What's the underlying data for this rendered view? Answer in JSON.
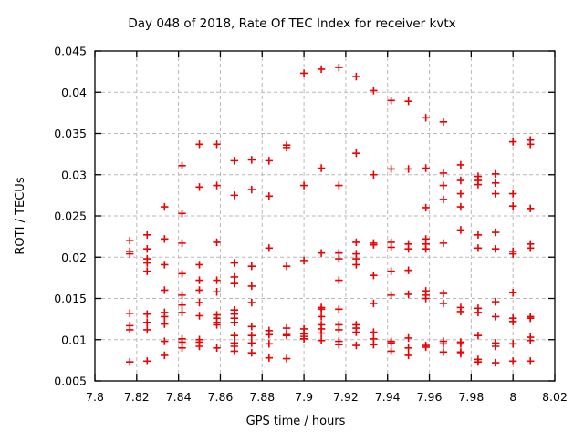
{
  "chart": {
    "title": "Day 048 of 2018, Rate Of TEC Index for receiver kvtx",
    "xlabel": "GPS time / hours",
    "ylabel": "ROTI / TECUs"
  },
  "chart_data": {
    "type": "scatter",
    "title": "Day 048 of 2018, Rate Of TEC Index for receiver kvtx",
    "xlabel": "GPS time / hours",
    "ylabel": "ROTI / TECUs",
    "xlim": [
      7.8,
      8.02
    ],
    "ylim": [
      0.005,
      0.045
    ],
    "xticks": [
      7.8,
      7.82,
      7.84,
      7.86,
      7.88,
      7.9,
      7.92,
      7.94,
      7.96,
      7.98,
      8.0,
      8.02
    ],
    "xtick_labels": [
      "7.8",
      "7.82",
      "7.84",
      "7.86",
      "7.88",
      "7.9",
      "7.92",
      "7.94",
      "7.96",
      "7.98",
      "8",
      "8.02"
    ],
    "yticks": [
      0.005,
      0.01,
      0.015,
      0.02,
      0.025,
      0.03,
      0.035,
      0.04,
      0.045
    ],
    "ytick_labels": [
      "0.005",
      "0.01",
      "0.015",
      "0.02",
      "0.025",
      "0.03",
      "0.035",
      "0.04",
      "0.045"
    ],
    "grid": true,
    "legend": "none",
    "marker": "plus",
    "marker_color": "#ee0000",
    "grid_color": "#b9b9b9",
    "border_color": "#000000",
    "background_color": "#ffffff",
    "columns": [
      {
        "t": 7.8167,
        "v": [
          0.022,
          0.0207,
          0.0204,
          0.0132,
          0.0117,
          0.0112,
          0.0073
        ]
      },
      {
        "t": 7.825,
        "v": [
          0.0227,
          0.021,
          0.0198,
          0.0193,
          0.0183,
          0.0131,
          0.0121,
          0.0112,
          0.0074
        ]
      },
      {
        "t": 7.8333,
        "v": [
          0.0261,
          0.0222,
          0.0191,
          0.016,
          0.0133,
          0.0128,
          0.0119,
          0.0098,
          0.0081
        ]
      },
      {
        "t": 7.8417,
        "v": [
          0.0311,
          0.0253,
          0.0217,
          0.018,
          0.0154,
          0.0142,
          0.0133,
          0.0101,
          0.0097,
          0.009
        ]
      },
      {
        "t": 7.85,
        "v": [
          0.0337,
          0.0285,
          0.0191,
          0.0172,
          0.016,
          0.0145,
          0.0129,
          0.01,
          0.0097,
          0.0092
        ]
      },
      {
        "t": 7.8583,
        "v": [
          0.0337,
          0.0287,
          0.0218,
          0.0172,
          0.0158,
          0.013,
          0.0126,
          0.0121,
          0.0118,
          0.009
        ]
      },
      {
        "t": 7.8667,
        "v": [
          0.0317,
          0.0275,
          0.0193,
          0.0176,
          0.0168,
          0.0136,
          0.0131,
          0.0126,
          0.0121,
          0.0105,
          0.0096,
          0.0092,
          0.0086
        ]
      },
      {
        "t": 7.875,
        "v": [
          0.0318,
          0.0282,
          0.0189,
          0.0165,
          0.0145,
          0.0116,
          0.0105,
          0.0096,
          0.0084
        ]
      },
      {
        "t": 7.8833,
        "v": [
          0.0317,
          0.0274,
          0.0211,
          0.0111,
          0.0106,
          0.0095,
          0.0078
        ]
      },
      {
        "t": 7.8917,
        "v": [
          0.0336,
          0.0333,
          0.0189,
          0.0114,
          0.0106,
          0.0105,
          0.0077
        ]
      },
      {
        "t": 7.9,
        "v": [
          0.0423,
          0.0287,
          0.0196,
          0.0113,
          0.0107,
          0.0104,
          0.0101
        ]
      },
      {
        "t": 7.9083,
        "v": [
          0.0428,
          0.0308,
          0.0205,
          0.0139,
          0.0137,
          0.0128,
          0.0118,
          0.0113,
          0.0108,
          0.0099
        ]
      },
      {
        "t": 7.9167,
        "v": [
          0.043,
          0.0287,
          0.0205,
          0.0198,
          0.0172,
          0.0137,
          0.0118,
          0.0112,
          0.0098,
          0.0094
        ]
      },
      {
        "t": 7.925,
        "v": [
          0.0419,
          0.0326,
          0.0218,
          0.0204,
          0.0198,
          0.0191,
          0.0118,
          0.0114,
          0.0109,
          0.0093
        ]
      },
      {
        "t": 7.9333,
        "v": [
          0.0402,
          0.03,
          0.0217,
          0.0215,
          0.0178,
          0.0144,
          0.0109,
          0.0101,
          0.0094
        ]
      },
      {
        "t": 7.9417,
        "v": [
          0.039,
          0.0307,
          0.0218,
          0.0212,
          0.0183,
          0.0154,
          0.0098,
          0.0096,
          0.0086
        ]
      },
      {
        "t": 7.95,
        "v": [
          0.0389,
          0.0307,
          0.0216,
          0.021,
          0.0184,
          0.0155,
          0.0102,
          0.009,
          0.0081
        ]
      },
      {
        "t": 7.9583,
        "v": [
          0.0369,
          0.0308,
          0.026,
          0.0222,
          0.0216,
          0.021,
          0.0159,
          0.0154,
          0.015,
          0.0093,
          0.0091
        ]
      },
      {
        "t": 7.9667,
        "v": [
          0.0364,
          0.0302,
          0.0287,
          0.027,
          0.0217,
          0.0156,
          0.0144,
          0.0098,
          0.0095,
          0.0085
        ]
      },
      {
        "t": 7.975,
        "v": [
          0.0312,
          0.0293,
          0.0277,
          0.0261,
          0.0233,
          0.0139,
          0.0134,
          0.0097,
          0.0095,
          0.0085,
          0.0083
        ]
      },
      {
        "t": 7.9833,
        "v": [
          0.0298,
          0.0293,
          0.0288,
          0.0227,
          0.0211,
          0.0138,
          0.0133,
          0.0105,
          0.0076,
          0.0073
        ]
      },
      {
        "t": 7.9917,
        "v": [
          0.0301,
          0.029,
          0.0277,
          0.023,
          0.021,
          0.0146,
          0.0128,
          0.0096,
          0.0092,
          0.0072
        ]
      },
      {
        "t": 8.0,
        "v": [
          0.034,
          0.0277,
          0.0262,
          0.0207,
          0.0204,
          0.0157,
          0.0126,
          0.0122,
          0.0095,
          0.0074
        ]
      },
      {
        "t": 8.0083,
        "v": [
          0.0342,
          0.0337,
          0.0259,
          0.0216,
          0.0211,
          0.0128,
          0.0126,
          0.0103,
          0.0099,
          0.0074
        ]
      }
    ]
  }
}
